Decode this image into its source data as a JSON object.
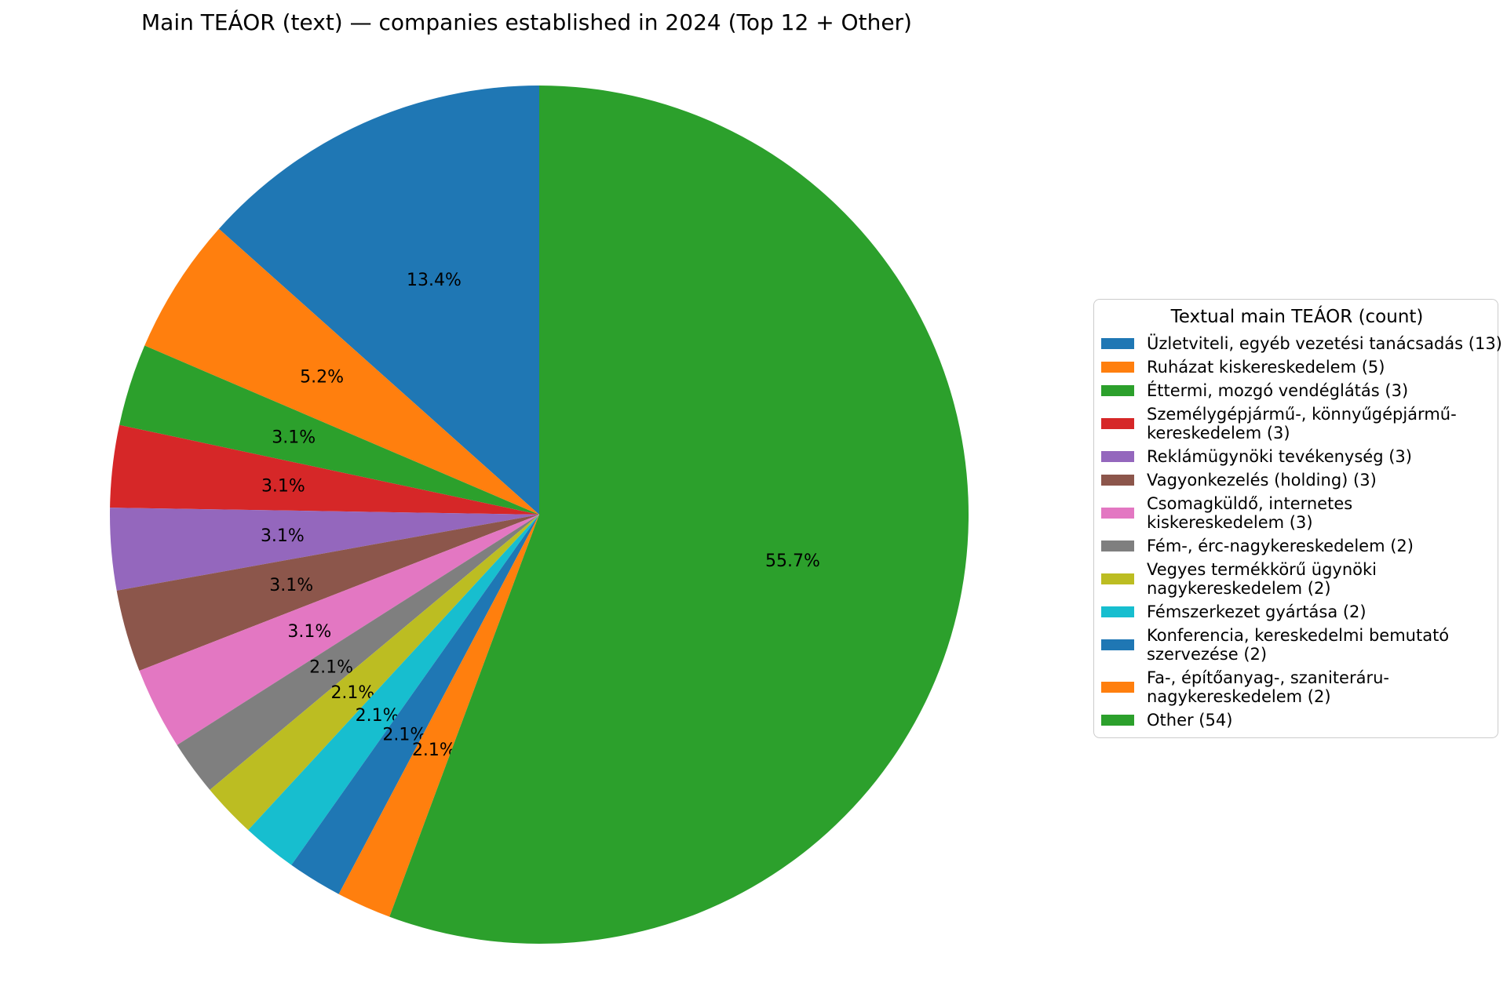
{
  "chart_data": {
    "type": "pie",
    "title": "Main TEÁOR (text) — companies established in 2024 (Top 12 + Other)",
    "legend_title": "Textual main TEÁOR (count)",
    "legend_position": "right",
    "start_angle_deg": 90,
    "direction": "counterclockwise",
    "total_count": 97,
    "slices": [
      {
        "label": "Üzletviteli, egyéb vezetési tanácsadás",
        "count": 13,
        "percent": 13.4,
        "percent_label": "13.4%",
        "color": "#1f77b4",
        "legend_label": "Üzletviteli, egyéb vezetési tanácsadás (13)"
      },
      {
        "label": "Ruházat kiskereskedelem",
        "count": 5,
        "percent": 5.2,
        "percent_label": "5.2%",
        "color": "#ff7f0e",
        "legend_label": "Ruházat kiskereskedelem (5)"
      },
      {
        "label": "Éttermi, mozgó vendéglátás",
        "count": 3,
        "percent": 3.1,
        "percent_label": "3.1%",
        "color": "#2ca02c",
        "legend_label": "Éttermi, mozgó vendéglátás (3)"
      },
      {
        "label": "Személygépjármű-, könnyűgépjármű-kereskedelem",
        "count": 3,
        "percent": 3.1,
        "percent_label": "3.1%",
        "color": "#d62728",
        "legend_label": "Személygépjármű-, könnyűgépjármű-\nkereskedelem (3)"
      },
      {
        "label": "Reklámügynöki tevékenység",
        "count": 3,
        "percent": 3.1,
        "percent_label": "3.1%",
        "color": "#9467bd",
        "legend_label": "Reklámügynöki tevékenység (3)"
      },
      {
        "label": "Vagyonkezelés (holding)",
        "count": 3,
        "percent": 3.1,
        "percent_label": "3.1%",
        "color": "#8c564b",
        "legend_label": "Vagyonkezelés (holding) (3)"
      },
      {
        "label": "Csomagküldő, internetes kiskereskedelem",
        "count": 3,
        "percent": 3.1,
        "percent_label": "3.1%",
        "color": "#e377c2",
        "legend_label": "Csomagküldő, internetes\nkiskereskedelem (3)"
      },
      {
        "label": "Fém-, érc-nagykereskedelem",
        "count": 2,
        "percent": 2.1,
        "percent_label": "2.1%",
        "color": "#7f7f7f",
        "legend_label": "Fém-, érc-nagykereskedelem (2)"
      },
      {
        "label": "Vegyes termékkörű ügynöki nagykereskedelem",
        "count": 2,
        "percent": 2.1,
        "percent_label": "2.1%",
        "color": "#bcbd22",
        "legend_label": "Vegyes termékkörű ügynöki\nnagykereskedelem (2)"
      },
      {
        "label": "Fémszerkezet gyártása",
        "count": 2,
        "percent": 2.1,
        "percent_label": "2.1%",
        "color": "#17becf",
        "legend_label": "Fémszerkezet gyártása (2)"
      },
      {
        "label": "Konferencia, kereskedelmi bemutató szervezése",
        "count": 2,
        "percent": 2.1,
        "percent_label": "2.1%",
        "color": "#1f77b4",
        "legend_label": "Konferencia, kereskedelmi bemutató\nszervezése (2)"
      },
      {
        "label": "Fa-, építőanyag-, szaniteráru-nagykereskedelem",
        "count": 2,
        "percent": 2.1,
        "percent_label": "2.1%",
        "color": "#ff7f0e",
        "legend_label": "Fa-, építőanyag-, szaniteráru-\nnagykereskedelem (2)"
      },
      {
        "label": "Other",
        "count": 54,
        "percent": 55.7,
        "percent_label": "55.7%",
        "color": "#2ca02c",
        "legend_label": "Other (54)"
      }
    ]
  }
}
